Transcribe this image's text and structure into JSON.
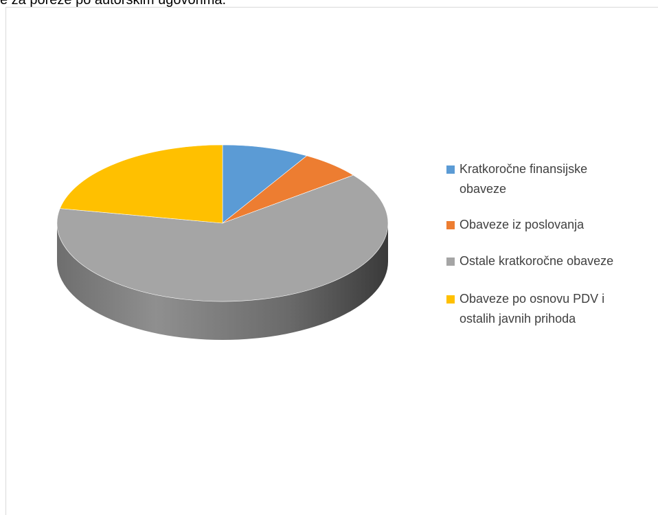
{
  "document": {
    "text_above_chart": "e za poreze po autorskim ugovorima."
  },
  "chart_data": {
    "type": "pie",
    "title": "",
    "three_d": true,
    "start_angle_deg": 0,
    "direction": "clockwise",
    "legend_position": "right",
    "categories": [
      "Kratkoročne finansijske obaveze",
      "Obaveze iz poslovanja",
      "Ostale kratkoročne obaveze",
      "Obaveze po osnovu PDV i ostalih javnih prihoda"
    ],
    "values": [
      8.5,
      6.0,
      63.5,
      22.0
    ],
    "colors": [
      "#5b9bd5",
      "#ed7d31",
      "#a5a5a5",
      "#ffc000"
    ],
    "legend_lines": [
      [
        "Kratkoročne finansijske",
        "obaveze"
      ],
      [
        "Obaveze iz poslovanja"
      ],
      [
        "Ostale kratkoročne obaveze"
      ],
      [
        "Obaveze po osnovu PDV i",
        "ostalih javnih prihoda"
      ]
    ]
  }
}
